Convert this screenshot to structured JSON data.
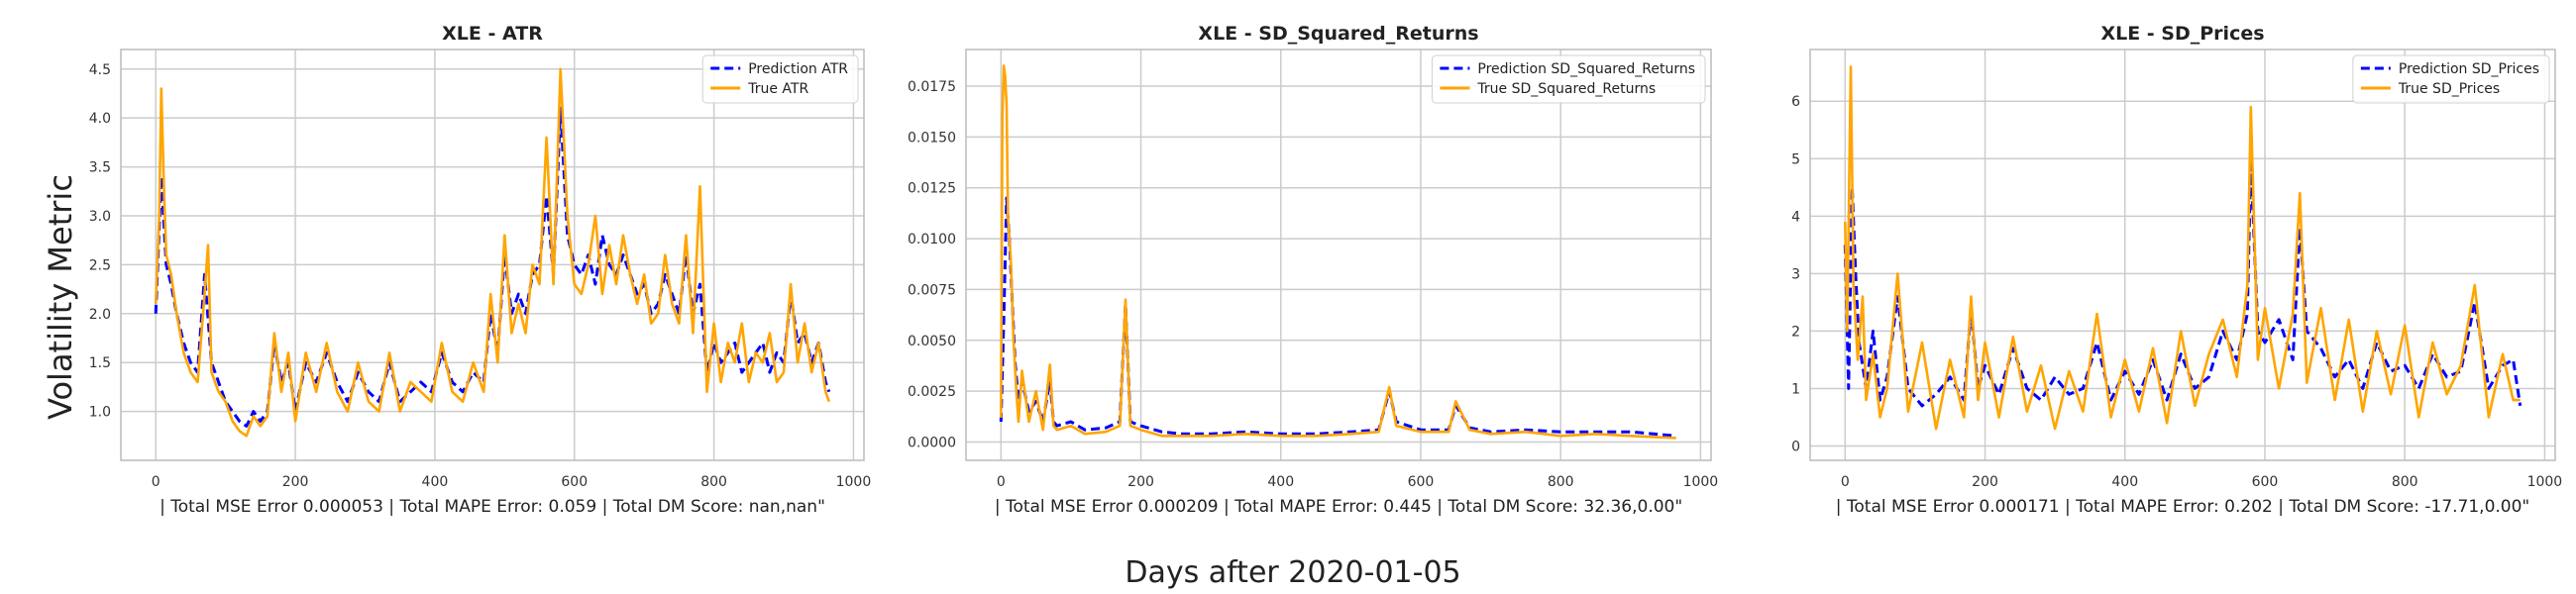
{
  "figure": {
    "ylabel": "Volatility Metric",
    "xlabel": "Days after 2020-01-05"
  },
  "colors": {
    "prediction": "#0000ff",
    "true": "#ffa500",
    "grid": "#cccccc",
    "axes": "#bbbbbb"
  },
  "chart_data": [
    {
      "type": "line",
      "title": "XLE - ATR",
      "xlabel": "| Total MSE Error 0.000053 | Total MAPE Error: 0.059 | Total DM Score: nan,nan\"",
      "xlim": [
        -50,
        1015
      ],
      "ylim": [
        0.5,
        4.7
      ],
      "xticks": [
        0,
        200,
        400,
        600,
        800,
        1000
      ],
      "yticks": [
        1.0,
        1.5,
        2.0,
        2.5,
        3.0,
        3.5,
        4.0,
        4.5
      ],
      "ytick_labels": [
        "1.0",
        "1.5",
        "2.0",
        "2.5",
        "3.0",
        "3.5",
        "4.0",
        "4.5"
      ],
      "grid": true,
      "legend_position": "top-right",
      "series": [
        {
          "name": "Prediction ATR",
          "style": "dashed",
          "color": "#0000ff",
          "x": [
            0,
            8,
            15,
            22,
            30,
            40,
            50,
            60,
            70,
            80,
            90,
            100,
            110,
            120,
            130,
            140,
            150,
            160,
            170,
            180,
            190,
            200,
            215,
            230,
            245,
            260,
            275,
            290,
            305,
            320,
            335,
            350,
            365,
            380,
            395,
            410,
            425,
            440,
            455,
            470,
            480,
            490,
            500,
            510,
            520,
            530,
            540,
            550,
            560,
            570,
            580,
            590,
            600,
            610,
            620,
            630,
            640,
            650,
            660,
            670,
            680,
            690,
            700,
            710,
            720,
            730,
            740,
            750,
            760,
            770,
            780,
            790,
            800,
            810,
            820,
            830,
            840,
            850,
            860,
            870,
            880,
            890,
            900,
            910,
            920,
            930,
            940,
            950,
            960,
            965
          ],
          "y": [
            2.0,
            3.4,
            2.5,
            2.3,
            2.0,
            1.7,
            1.5,
            1.4,
            2.4,
            1.5,
            1.3,
            1.1,
            1.0,
            0.9,
            0.85,
            1.0,
            0.9,
            1.0,
            1.7,
            1.3,
            1.5,
            1.0,
            1.5,
            1.3,
            1.6,
            1.3,
            1.1,
            1.4,
            1.2,
            1.1,
            1.5,
            1.1,
            1.2,
            1.3,
            1.2,
            1.6,
            1.3,
            1.2,
            1.4,
            1.3,
            2.0,
            1.6,
            2.6,
            2.0,
            2.2,
            2.0,
            2.4,
            2.5,
            3.2,
            2.4,
            4.1,
            2.8,
            2.5,
            2.4,
            2.6,
            2.3,
            2.8,
            2.5,
            2.4,
            2.6,
            2.4,
            2.2,
            2.3,
            2.0,
            2.1,
            2.4,
            2.2,
            2.0,
            2.6,
            2.0,
            2.3,
            1.4,
            1.7,
            1.5,
            1.6,
            1.7,
            1.4,
            1.5,
            1.6,
            1.7,
            1.4,
            1.6,
            1.5,
            2.2,
            1.7,
            1.8,
            1.5,
            1.7,
            1.3,
            1.2
          ]
        },
        {
          "name": "True ATR",
          "style": "solid",
          "color": "#ffa500",
          "x": [
            0,
            5,
            8,
            12,
            15,
            22,
            30,
            40,
            50,
            60,
            70,
            75,
            80,
            90,
            100,
            110,
            120,
            130,
            140,
            150,
            160,
            170,
            180,
            190,
            200,
            215,
            230,
            245,
            260,
            275,
            290,
            305,
            320,
            335,
            350,
            365,
            380,
            395,
            410,
            425,
            440,
            455,
            470,
            480,
            490,
            500,
            510,
            520,
            530,
            540,
            550,
            560,
            570,
            580,
            590,
            600,
            610,
            620,
            630,
            640,
            650,
            660,
            670,
            680,
            690,
            700,
            710,
            720,
            730,
            740,
            750,
            760,
            770,
            780,
            790,
            800,
            810,
            820,
            830,
            840,
            850,
            860,
            870,
            880,
            890,
            900,
            910,
            920,
            930,
            940,
            950,
            960,
            965
          ],
          "y": [
            2.1,
            3.0,
            4.3,
            3.2,
            2.6,
            2.4,
            2.0,
            1.6,
            1.4,
            1.3,
            2.2,
            2.7,
            1.4,
            1.2,
            1.1,
            0.9,
            0.8,
            0.75,
            0.95,
            0.85,
            0.95,
            1.8,
            1.2,
            1.6,
            0.9,
            1.6,
            1.2,
            1.7,
            1.2,
            1.0,
            1.5,
            1.1,
            1.0,
            1.6,
            1.0,
            1.3,
            1.2,
            1.1,
            1.7,
            1.2,
            1.1,
            1.5,
            1.2,
            2.2,
            1.5,
            2.8,
            1.8,
            2.1,
            1.8,
            2.5,
            2.3,
            3.8,
            2.3,
            4.5,
            3.0,
            2.3,
            2.2,
            2.5,
            3.0,
            2.2,
            2.7,
            2.3,
            2.8,
            2.4,
            2.1,
            2.4,
            1.9,
            2.0,
            2.6,
            2.1,
            1.9,
            2.8,
            1.8,
            3.3,
            1.2,
            1.9,
            1.3,
            1.7,
            1.5,
            1.9,
            1.3,
            1.6,
            1.5,
            1.8,
            1.3,
            1.4,
            2.3,
            1.5,
            1.9,
            1.4,
            1.7,
            1.2,
            1.1
          ]
        }
      ]
    },
    {
      "type": "line",
      "title": "XLE - SD_Squared_Returns",
      "xlabel": "| Total MSE Error 0.000209 | Total MAPE Error: 0.445 | Total DM Score: 32.36,0.00\"",
      "xlim": [
        -50,
        1015
      ],
      "ylim": [
        -0.0009,
        0.0193
      ],
      "xticks": [
        0,
        200,
        400,
        600,
        800,
        1000
      ],
      "yticks": [
        0.0,
        0.0025,
        0.005,
        0.0075,
        0.01,
        0.0125,
        0.015,
        0.0175
      ],
      "ytick_labels": [
        "0.0000",
        "0.0025",
        "0.0050",
        "0.0075",
        "0.0100",
        "0.0125",
        "0.0150",
        "0.0175"
      ],
      "grid": true,
      "legend_position": "top-right",
      "series": [
        {
          "name": "Prediction SD_Squared_Returns",
          "style": "dashed",
          "color": "#0000ff",
          "x": [
            0,
            4,
            8,
            12,
            16,
            20,
            25,
            30,
            40,
            50,
            60,
            70,
            75,
            80,
            100,
            120,
            150,
            170,
            178,
            185,
            200,
            230,
            260,
            300,
            350,
            400,
            450,
            500,
            540,
            555,
            565,
            600,
            640,
            650,
            670,
            700,
            750,
            800,
            850,
            900,
            965
          ],
          "y": [
            0.001,
            0.006,
            0.012,
            0.01,
            0.007,
            0.004,
            0.002,
            0.003,
            0.0015,
            0.002,
            0.001,
            0.003,
            0.001,
            0.0008,
            0.001,
            0.0006,
            0.0007,
            0.001,
            0.0068,
            0.001,
            0.0008,
            0.0005,
            0.0004,
            0.0004,
            0.0005,
            0.0004,
            0.0004,
            0.0005,
            0.0006,
            0.0025,
            0.001,
            0.0006,
            0.0006,
            0.0018,
            0.0007,
            0.0005,
            0.0006,
            0.0005,
            0.0005,
            0.0005,
            0.0003
          ]
        },
        {
          "name": "True SD_Squared_Returns",
          "style": "solid",
          "color": "#ffa500",
          "x": [
            0,
            2,
            4,
            6,
            8,
            10,
            14,
            18,
            22,
            25,
            30,
            40,
            50,
            60,
            70,
            75,
            80,
            100,
            120,
            150,
            170,
            178,
            185,
            200,
            230,
            260,
            300,
            350,
            400,
            450,
            500,
            540,
            555,
            565,
            600,
            640,
            650,
            670,
            700,
            750,
            800,
            850,
            900,
            965
          ],
          "y": [
            0.0012,
            0.016,
            0.0185,
            0.018,
            0.0165,
            0.011,
            0.009,
            0.005,
            0.0025,
            0.001,
            0.0035,
            0.001,
            0.0025,
            0.0006,
            0.0038,
            0.0008,
            0.0006,
            0.0008,
            0.0004,
            0.0005,
            0.0008,
            0.007,
            0.0008,
            0.0006,
            0.0003,
            0.0003,
            0.0003,
            0.0004,
            0.0003,
            0.0003,
            0.0004,
            0.0005,
            0.0027,
            0.0008,
            0.0005,
            0.0005,
            0.002,
            0.0006,
            0.0004,
            0.0005,
            0.0003,
            0.0004,
            0.0003,
            0.0002
          ]
        }
      ]
    },
    {
      "type": "line",
      "title": "XLE - SD_Prices",
      "xlabel": "| Total MSE Error 0.000171 | Total MAPE Error: 0.202 | Total DM Score: -17.71,0.00\"",
      "xlim": [
        -50,
        1015
      ],
      "ylim": [
        -0.25,
        6.9
      ],
      "xticks": [
        0,
        200,
        400,
        600,
        800,
        1000
      ],
      "yticks": [
        0,
        1,
        2,
        3,
        4,
        5,
        6
      ],
      "ytick_labels": [
        "0",
        "1",
        "2",
        "3",
        "4",
        "5",
        "6"
      ],
      "grid": true,
      "legend_position": "top-right",
      "series": [
        {
          "name": "Prediction SD_Prices",
          "style": "dashed",
          "color": "#0000ff",
          "x": [
            0,
            5,
            10,
            15,
            20,
            30,
            40,
            50,
            60,
            75,
            90,
            110,
            130,
            150,
            170,
            180,
            190,
            200,
            220,
            240,
            260,
            280,
            300,
            320,
            340,
            360,
            380,
            400,
            420,
            440,
            460,
            480,
            500,
            520,
            540,
            560,
            575,
            580,
            590,
            600,
            620,
            640,
            650,
            660,
            680,
            700,
            720,
            740,
            760,
            780,
            800,
            820,
            840,
            860,
            880,
            900,
            920,
            940,
            955,
            965
          ],
          "y": [
            3.5,
            1.0,
            4.5,
            3.0,
            1.8,
            1.0,
            2.0,
            0.8,
            1.2,
            2.6,
            1.0,
            0.7,
            0.9,
            1.2,
            0.8,
            2.4,
            1.0,
            1.4,
            0.9,
            1.7,
            1.0,
            0.8,
            1.2,
            0.9,
            1.0,
            1.8,
            0.8,
            1.3,
            0.9,
            1.5,
            0.8,
            1.6,
            1.0,
            1.2,
            2.0,
            1.5,
            2.3,
            5.0,
            2.0,
            1.8,
            2.2,
            1.5,
            3.8,
            2.0,
            1.7,
            1.2,
            1.5,
            1.0,
            1.8,
            1.3,
            1.4,
            1.0,
            1.6,
            1.2,
            1.3,
            2.5,
            1.0,
            1.4,
            1.5,
            0.7
          ]
        },
        {
          "name": "True SD_Prices",
          "style": "solid",
          "color": "#ffa500",
          "x": [
            0,
            3,
            8,
            12,
            18,
            25,
            30,
            40,
            50,
            60,
            75,
            90,
            110,
            130,
            150,
            170,
            180,
            190,
            200,
            220,
            240,
            260,
            280,
            300,
            320,
            340,
            360,
            380,
            400,
            420,
            440,
            460,
            480,
            500,
            520,
            540,
            560,
            575,
            580,
            590,
            600,
            620,
            640,
            650,
            660,
            680,
            700,
            720,
            740,
            760,
            780,
            800,
            820,
            840,
            860,
            880,
            900,
            920,
            940,
            955,
            965
          ],
          "y": [
            3.9,
            2.0,
            6.6,
            2.8,
            1.5,
            2.6,
            0.8,
            1.6,
            0.5,
            1.0,
            3.0,
            0.6,
            1.8,
            0.3,
            1.5,
            0.5,
            2.6,
            0.8,
            1.8,
            0.5,
            1.9,
            0.6,
            1.4,
            0.3,
            1.3,
            0.6,
            2.3,
            0.5,
            1.5,
            0.6,
            1.7,
            0.4,
            2.0,
            0.7,
            1.6,
            2.2,
            1.2,
            2.8,
            5.9,
            1.5,
            2.4,
            1.0,
            2.3,
            4.4,
            1.1,
            2.4,
            0.8,
            2.2,
            0.6,
            2.0,
            0.9,
            2.1,
            0.5,
            1.8,
            0.9,
            1.4,
            2.8,
            0.5,
            1.6,
            0.8,
            0.8
          ]
        }
      ]
    }
  ]
}
